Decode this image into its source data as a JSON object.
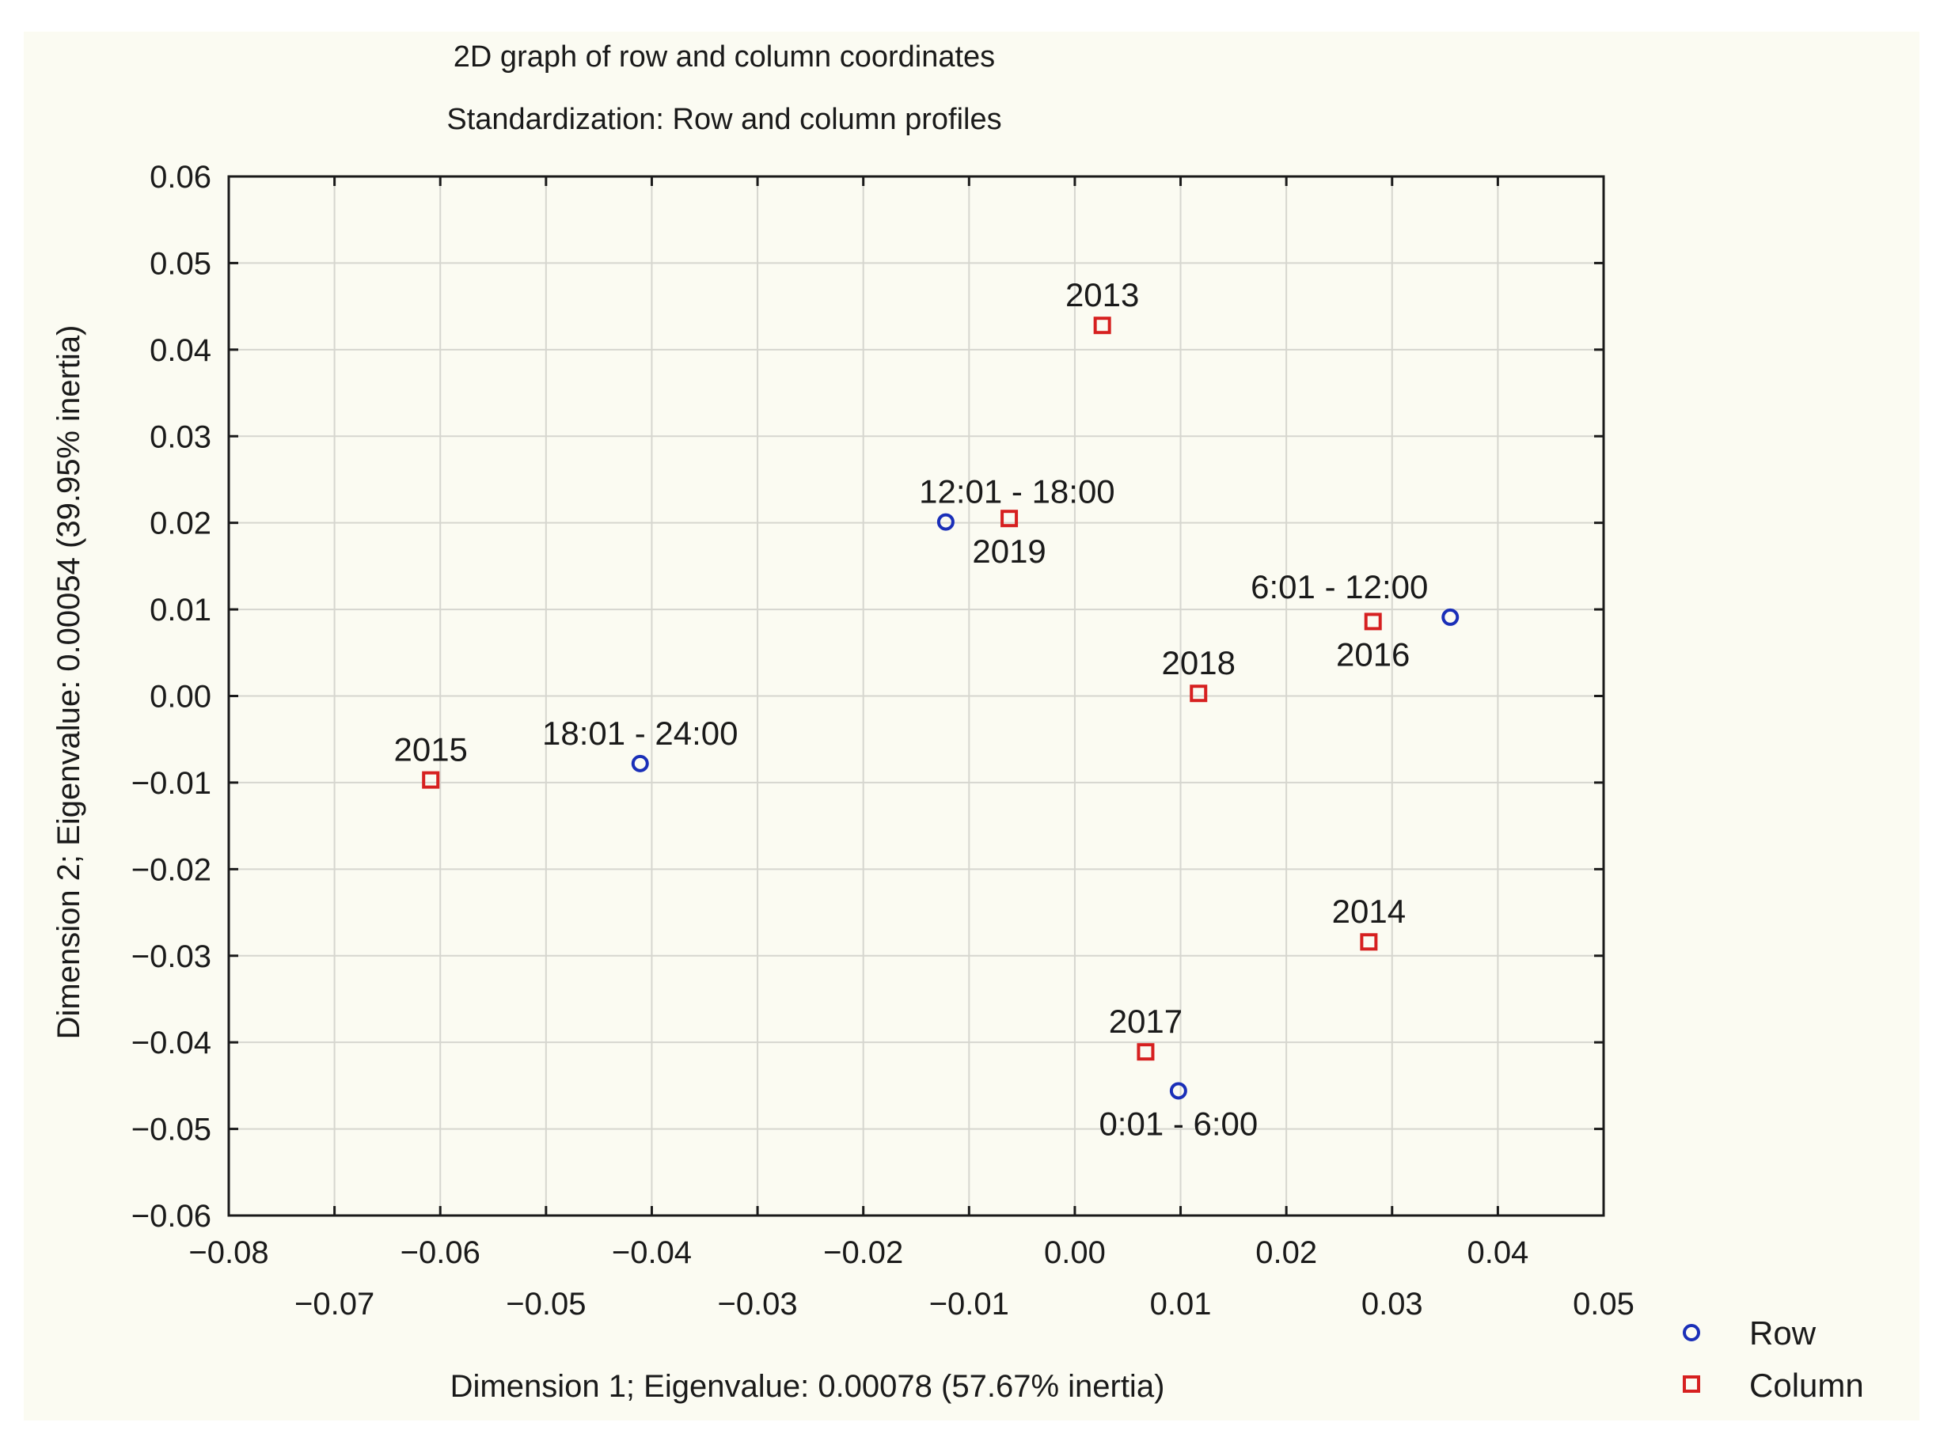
{
  "chart_data": {
    "type": "scatter",
    "title": "2D graph of row and column coordinates",
    "subtitle": "Standardization:   Row and column profiles",
    "xlabel": "Dimension   1; Eigenvalue: 0.00078 (57.67% inertia)",
    "ylabel": "Dimension   2; Eigenvalue: 0.00054 (39.95% inertia)",
    "xlim": [
      -0.08,
      0.05
    ],
    "ylim": [
      -0.06,
      0.06
    ],
    "x_ticks_upper": [
      "−0.08",
      "−0.06",
      "−0.04",
      "−0.02",
      "0.00",
      "0.02",
      "0.04"
    ],
    "x_ticks_upper_values": [
      -0.08,
      -0.06,
      -0.04,
      -0.02,
      0.0,
      0.02,
      0.04
    ],
    "x_ticks_lower": [
      "−0.07",
      "−0.05",
      "−0.03",
      "−0.01",
      "0.01",
      "0.03",
      "0.05"
    ],
    "x_ticks_lower_values": [
      -0.07,
      -0.05,
      -0.03,
      -0.01,
      0.01,
      0.03,
      0.05
    ],
    "y_ticks": [
      "0.06",
      "0.05",
      "0.04",
      "0.03",
      "0.02",
      "0.01",
      "0.00",
      "−0.01",
      "−0.02",
      "−0.03",
      "−0.04",
      "−0.05",
      "−0.06"
    ],
    "y_ticks_values": [
      0.06,
      0.05,
      0.04,
      0.03,
      0.02,
      0.01,
      0.0,
      -0.01,
      -0.02,
      -0.03,
      -0.04,
      -0.05,
      -0.06
    ],
    "grid": true,
    "legend_position": "bottom-right",
    "series": [
      {
        "name": "Row",
        "marker": "circle",
        "color": "#1a2fb8",
        "points": [
          {
            "label": "12:01 - 18:00",
            "x": -0.0122,
            "y": 0.0201,
            "label_pos": "above-left"
          },
          {
            "label": "6:01 - 12:00",
            "x": 0.0355,
            "y": 0.0091,
            "label_pos": "above-left"
          },
          {
            "label": "18:01 - 24:00",
            "x": -0.0411,
            "y": -0.0078,
            "label_pos": "above"
          },
          {
            "label": "0:01 - 6:00",
            "x": 0.0098,
            "y": -0.0456,
            "label_pos": "below"
          }
        ]
      },
      {
        "name": "Column",
        "marker": "square",
        "color": "#d62020",
        "points": [
          {
            "label": "2013",
            "x": 0.0026,
            "y": 0.0428,
            "label_pos": "above"
          },
          {
            "label": "2019",
            "x": -0.0062,
            "y": 0.0205,
            "label_pos": "below"
          },
          {
            "label": "2016",
            "x": 0.0282,
            "y": 0.0086,
            "label_pos": "below"
          },
          {
            "label": "2018",
            "x": 0.0117,
            "y": 0.0003,
            "label_pos": "above"
          },
          {
            "label": "2015",
            "x": -0.0609,
            "y": -0.0097,
            "label_pos": "above"
          },
          {
            "label": "2014",
            "x": 0.0278,
            "y": -0.0284,
            "label_pos": "above"
          },
          {
            "label": "2017",
            "x": 0.0067,
            "y": -0.0411,
            "label_pos": "above"
          }
        ]
      }
    ]
  }
}
